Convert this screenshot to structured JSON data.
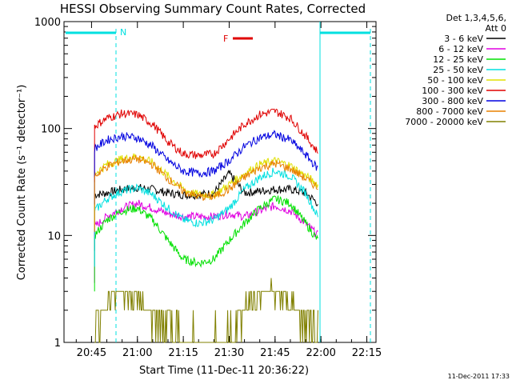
{
  "chart_data": {
    "type": "line",
    "title": "HESSI Observing Summary Count Rates, Corrected",
    "xlabel": "Start Time (11-Dec-11 20:36:22)",
    "ylabel": "Corrected Count Rate (s⁻¹ detector⁻¹)",
    "y_scale": "log",
    "ylim": [
      1,
      1000
    ],
    "xlim": [
      "20:36",
      "22:18"
    ],
    "x_ticks": [
      "20:45",
      "21:00",
      "21:15",
      "21:30",
      "21:45",
      "22:00",
      "22:15"
    ],
    "y_ticks": [
      "1",
      "10",
      "100",
      "1000"
    ],
    "legend_header": [
      "Det 1,3,4,5,6,",
      "Att 0"
    ],
    "legend_position": "right",
    "footer_date": "11-Dec-2011 17:33",
    "flag_label": "F",
    "night_marker": "N",
    "series": [
      {
        "name": "3 - 6 keV",
        "color": "#000000",
        "x": [
          "20:46",
          "20:50",
          "20:55",
          "21:00",
          "21:05",
          "21:10",
          "21:15",
          "21:20",
          "21:25",
          "21:30",
          "21:35",
          "21:40",
          "21:45",
          "21:50",
          "21:55",
          "21:59"
        ],
        "y": [
          24,
          25,
          27,
          28,
          27,
          25,
          24,
          24,
          25,
          38,
          25,
          26,
          27,
          27,
          25,
          20
        ]
      },
      {
        "name": "6 - 12 keV",
        "color": "#e000e0",
        "x": [
          "20:46",
          "20:50",
          "20:55",
          "21:00",
          "21:05",
          "21:10",
          "21:15",
          "21:20",
          "21:25",
          "21:30",
          "21:35",
          "21:40",
          "21:45",
          "21:50",
          "21:55",
          "21:59"
        ],
        "y": [
          12,
          15,
          18,
          20,
          18,
          16,
          15,
          15,
          15,
          16,
          15,
          17,
          19,
          17,
          13,
          10
        ]
      },
      {
        "name": "12 - 25 keV",
        "color": "#00e000",
        "x": [
          "20:46",
          "20:50",
          "20:55",
          "21:00",
          "21:05",
          "21:10",
          "21:15",
          "21:20",
          "21:25",
          "21:30",
          "21:35",
          "21:40",
          "21:45",
          "21:50",
          "21:55",
          "21:59"
        ],
        "y": [
          10,
          14,
          17,
          18,
          14,
          9,
          6,
          5.5,
          6,
          9,
          13,
          18,
          22,
          20,
          13,
          9
        ]
      },
      {
        "name": "25 - 50 keV",
        "color": "#00e0e0",
        "x": [
          "20:46",
          "20:50",
          "20:55",
          "21:00",
          "21:05",
          "21:10",
          "21:15",
          "21:20",
          "21:25",
          "21:30",
          "21:35",
          "21:40",
          "21:45",
          "21:50",
          "21:55",
          "21:59"
        ],
        "y": [
          17,
          22,
          26,
          28,
          24,
          18,
          14,
          13,
          14,
          18,
          27,
          35,
          40,
          36,
          25,
          15
        ]
      },
      {
        "name": "50 - 100 keV",
        "color": "#e0e000",
        "x": [
          "20:46",
          "20:50",
          "20:55",
          "21:00",
          "21:05",
          "21:10",
          "21:15",
          "21:20",
          "21:25",
          "21:30",
          "21:35",
          "21:40",
          "21:45",
          "21:50",
          "21:55",
          "21:59"
        ],
        "y": [
          38,
          46,
          52,
          55,
          48,
          36,
          27,
          24,
          24,
          30,
          38,
          46,
          50,
          45,
          36,
          30
        ]
      },
      {
        "name": "100 - 300 keV",
        "color": "#e00000",
        "x": [
          "20:46",
          "20:50",
          "20:55",
          "21:00",
          "21:05",
          "21:10",
          "21:15",
          "21:20",
          "21:25",
          "21:30",
          "21:35",
          "21:40",
          "21:45",
          "21:50",
          "21:55",
          "21:59"
        ],
        "y": [
          105,
          125,
          138,
          135,
          110,
          75,
          58,
          56,
          58,
          80,
          110,
          135,
          145,
          125,
          85,
          60
        ]
      },
      {
        "name": "300 - 800 keV",
        "color": "#0000e0",
        "x": [
          "20:46",
          "20:50",
          "20:55",
          "21:00",
          "21:05",
          "21:10",
          "21:15",
          "21:20",
          "21:25",
          "21:30",
          "21:35",
          "21:40",
          "21:45",
          "21:50",
          "21:55",
          "21:59"
        ],
        "y": [
          65,
          78,
          85,
          82,
          68,
          50,
          40,
          38,
          40,
          50,
          68,
          82,
          88,
          78,
          57,
          42
        ]
      },
      {
        "name": "800 - 7000 keV",
        "color": "#e88000",
        "x": [
          "20:46",
          "20:50",
          "20:55",
          "21:00",
          "21:05",
          "21:10",
          "21:15",
          "21:20",
          "21:25",
          "21:30",
          "21:35",
          "21:40",
          "21:45",
          "21:50",
          "21:55",
          "21:59"
        ],
        "y": [
          36,
          44,
          50,
          52,
          46,
          34,
          26,
          23,
          23,
          27,
          35,
          43,
          47,
          42,
          34,
          28
        ]
      },
      {
        "name": "7000 - 20000 keV",
        "color": "#808000",
        "x": [
          "20:46",
          "20:50",
          "20:55",
          "21:00",
          "21:05",
          "21:10",
          "21:15",
          "21:20",
          "21:25",
          "21:30",
          "21:35",
          "21:40",
          "21:45",
          "21:50",
          "21:55",
          "21:59"
        ],
        "y": [
          1.5,
          2.5,
          3,
          2.5,
          2,
          1.5,
          1,
          1,
          1,
          1.2,
          2,
          3,
          3,
          2.5,
          1.5,
          1
        ]
      }
    ]
  }
}
